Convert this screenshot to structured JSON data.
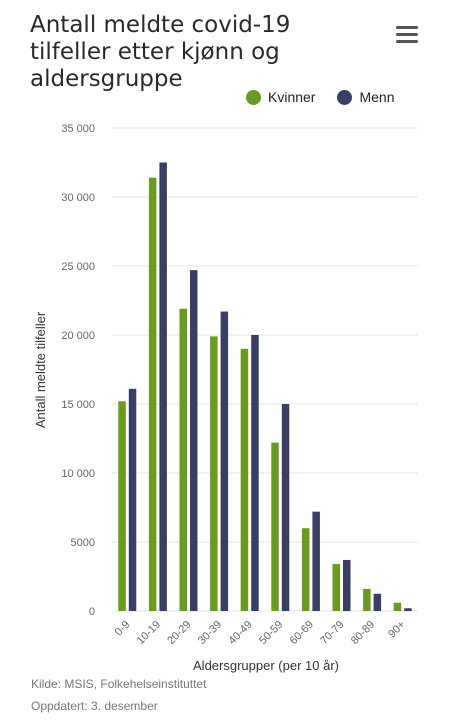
{
  "header": {
    "title": "Antall meldte covid-19 tilfeller etter kjønn og aldersgruppe",
    "menu_icon": "hamburger-menu-icon"
  },
  "colors": {
    "kvinner": "#6a9a1f",
    "menn": "#393f63",
    "grid": "#e6e6e6",
    "axis_text": "#666666"
  },
  "chart_data": {
    "type": "bar",
    "title": "Antall meldte covid-19 tilfeller etter kjønn og aldersgruppe",
    "xlabel": "Aldersgrupper (per 10 år)",
    "ylabel": "Antall meldte tilfeller",
    "ylim": [
      0,
      35000
    ],
    "yticks": [
      0,
      5000,
      10000,
      15000,
      20000,
      25000,
      30000,
      35000
    ],
    "ytick_labels": [
      "0",
      "5000",
      "10 000",
      "15 000",
      "20 000",
      "25 000",
      "30 000",
      "35 000"
    ],
    "categories": [
      "0-9",
      "10-19",
      "20-29",
      "30-39",
      "40-49",
      "50-59",
      "60-69",
      "70-79",
      "80-89",
      "90+"
    ],
    "series": [
      {
        "name": "Kvinner",
        "values": [
          15200,
          31400,
          21900,
          19900,
          19000,
          12200,
          6000,
          3400,
          1600,
          600
        ]
      },
      {
        "name": "Menn",
        "values": [
          16100,
          32500,
          24700,
          21700,
          20000,
          15000,
          7200,
          3700,
          1250,
          200
        ]
      }
    ],
    "legend_position": "top-right",
    "grid": true
  },
  "footer": {
    "source": "Kilde: MSIS, Folkehelseinstituttet",
    "updated": "Oppdatert: 3. desember"
  }
}
